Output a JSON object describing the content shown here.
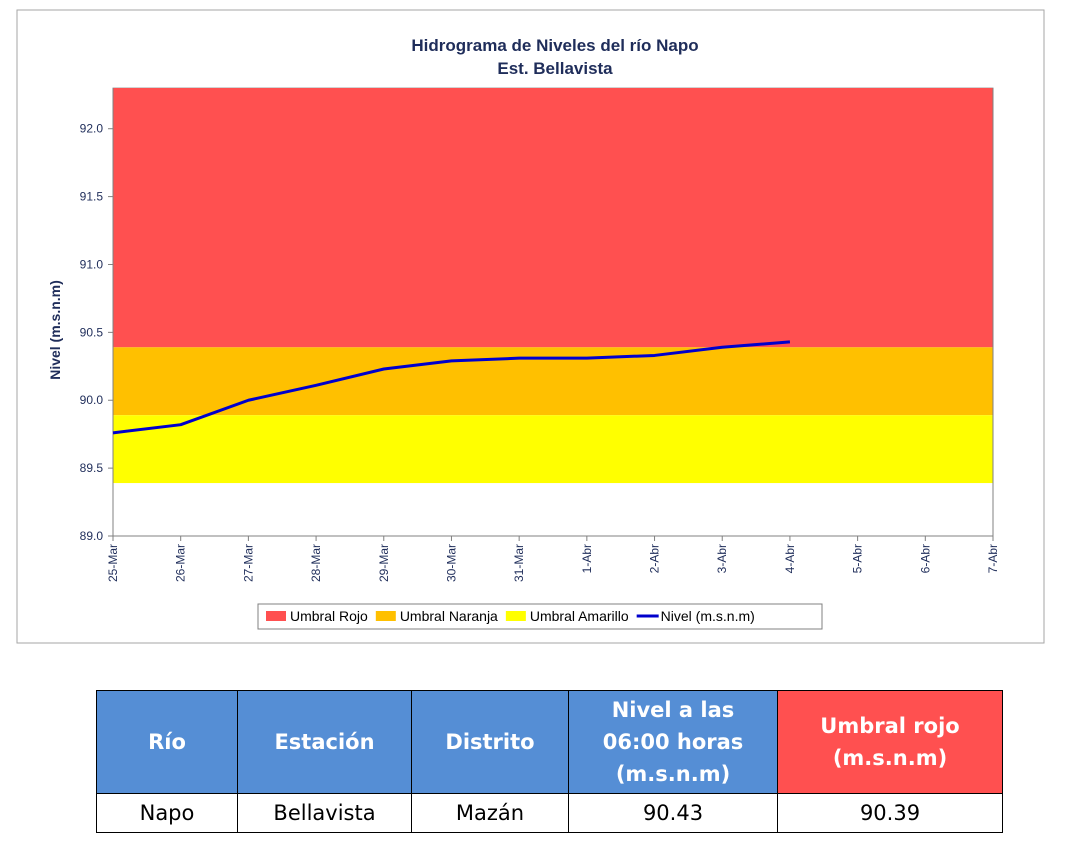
{
  "chart_data": {
    "type": "line",
    "title": "Hidrograma de Niveles del río Napo",
    "subtitle": "Est. Bellavista",
    "y_label": "Nivel (m.s.n.m)",
    "categories": [
      "25-Mar",
      "26-Mar",
      "27-Mar",
      "28-Mar",
      "29-Mar",
      "30-Mar",
      "31-Mar",
      "1-Abr",
      "2-Abr",
      "3-Abr",
      "4-Abr",
      "5-Abr",
      "6-Abr",
      "7-Abr"
    ],
    "bands": [
      {
        "name": "Umbral Rojo",
        "color": "#ff5050",
        "value": 90.39
      },
      {
        "name": "Umbral Naranja",
        "color": "#ffc000",
        "value": 89.89
      },
      {
        "name": "Umbral Amarillo",
        "color": "#ffff00",
        "value": 89.39
      }
    ],
    "series": [
      {
        "name": "Nivel (m.s.n.m)",
        "color": "#0000cc",
        "values": [
          89.76,
          89.82,
          90.0,
          90.11,
          90.23,
          90.29,
          90.31,
          90.31,
          90.33,
          90.39,
          90.43,
          null,
          null,
          null
        ]
      }
    ],
    "ylim": [
      89.0,
      92.3
    ],
    "yticks": [
      {
        "value": 89,
        "label": "89.0"
      },
      89.5,
      {
        "value": 90,
        "label": "90.0"
      },
      90.5,
      {
        "value": 91,
        "label": "91.0"
      },
      91.5,
      {
        "value": 92,
        "label": "92.0"
      }
    ],
    "legend": "bottom"
  },
  "table": {
    "header": [
      "Río",
      "Estación",
      "Distrito",
      "Nivel a las 06:00 horas (m.s.n.m)",
      "Umbral rojo (m.s.n.m)"
    ],
    "rows": [
      [
        "Napo",
        "Bellavista",
        "Mazán",
        "90.43",
        "90.39"
      ]
    ]
  }
}
